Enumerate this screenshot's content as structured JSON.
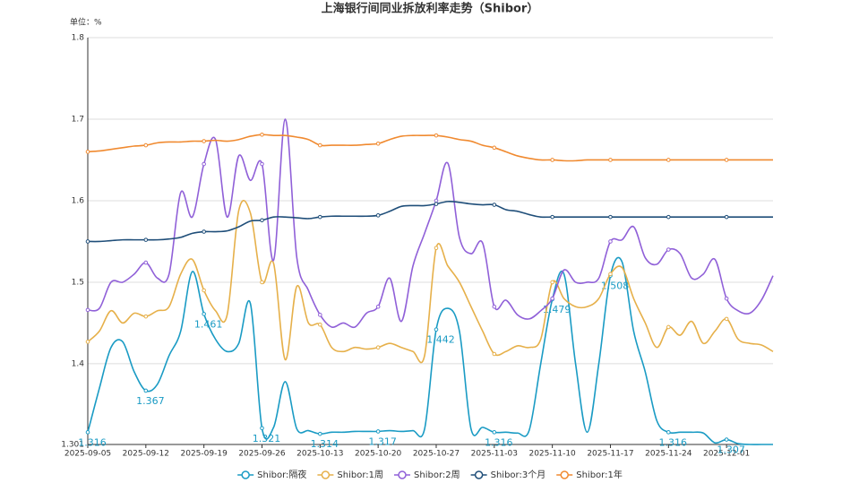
{
  "chart_data": {
    "type": "line",
    "title": "上海银行间同业拆放利率走势（Shibor）",
    "y_axis_label": "单位：%",
    "categories": [
      "2025-09-05",
      null,
      null,
      null,
      null,
      "2025-09-12",
      null,
      null,
      null,
      null,
      "2025-09-19",
      null,
      null,
      null,
      null,
      "2025-09-26",
      null,
      null,
      null,
      null,
      "2025-10-13",
      null,
      null,
      null,
      null,
      "2025-10-20",
      null,
      null,
      null,
      null,
      "2025-10-27",
      null,
      null,
      null,
      null,
      "2025-11-03",
      null,
      null,
      null,
      null,
      "2025-11-10",
      null,
      null,
      null,
      null,
      "2025-11-17",
      null,
      null,
      null,
      null,
      "2025-11-24",
      null,
      null,
      null,
      null,
      "2025-12-01",
      null,
      null,
      null,
      null
    ],
    "ylim": [
      1.301,
      1.8
    ],
    "yticks": [
      1.301,
      1.4,
      1.5,
      1.6,
      1.7,
      1.8
    ],
    "grid": true,
    "legend": "bottom",
    "series": [
      {
        "name": "Shibor:隔夜",
        "color": "#1a9bc4",
        "values": [
          1.316,
          1.37,
          1.42,
          1.427,
          1.39,
          1.367,
          1.375,
          1.41,
          1.44,
          1.513,
          1.461,
          1.43,
          1.415,
          1.425,
          1.474,
          1.321,
          1.322,
          1.378,
          1.32,
          1.318,
          1.314,
          1.316,
          1.316,
          1.317,
          1.317,
          1.317,
          1.318,
          1.317,
          1.318,
          1.32,
          1.442,
          1.468,
          1.44,
          1.32,
          1.322,
          1.316,
          1.316,
          1.315,
          1.318,
          1.4,
          1.479,
          1.51,
          1.4,
          1.316,
          1.4,
          1.508,
          1.525,
          1.44,
          1.39,
          1.33,
          1.316,
          1.316,
          1.316,
          1.315,
          1.303,
          1.307,
          1.302,
          1.301,
          1.301,
          1.301
        ],
        "value_labels": [
          "1.316",
          null,
          null,
          null,
          null,
          "1.367",
          null,
          null,
          null,
          null,
          "1.461",
          null,
          null,
          null,
          null,
          "1.321",
          null,
          null,
          null,
          null,
          "1.314",
          null,
          null,
          null,
          null,
          "1.317",
          null,
          null,
          null,
          null,
          "1.442",
          null,
          null,
          null,
          null,
          "1.316",
          null,
          null,
          null,
          null,
          "1.479",
          null,
          null,
          null,
          null,
          "1.508",
          null,
          null,
          null,
          null,
          "1.316",
          null,
          null,
          null,
          null,
          "1.307",
          null,
          null,
          null,
          null
        ]
      },
      {
        "name": "Shibor:1周",
        "color": "#e6b04a",
        "values": [
          1.427,
          1.44,
          1.465,
          1.45,
          1.462,
          1.458,
          1.465,
          1.47,
          1.51,
          1.528,
          1.49,
          1.465,
          1.46,
          1.588,
          1.585,
          1.5,
          1.523,
          1.405,
          1.495,
          1.45,
          1.448,
          1.42,
          1.415,
          1.42,
          1.418,
          1.42,
          1.425,
          1.42,
          1.415,
          1.41,
          1.542,
          1.52,
          1.5,
          1.47,
          1.44,
          1.412,
          1.415,
          1.422,
          1.42,
          1.43,
          1.5,
          1.48,
          1.47,
          1.47,
          1.48,
          1.51,
          1.518,
          1.48,
          1.45,
          1.42,
          1.445,
          1.435,
          1.452,
          1.425,
          1.44,
          1.455,
          1.43,
          1.425,
          1.423,
          1.415
        ]
      },
      {
        "name": "Shibor:2周",
        "color": "#9060d8",
        "values": [
          1.466,
          1.468,
          1.5,
          1.5,
          1.51,
          1.524,
          1.505,
          1.51,
          1.61,
          1.58,
          1.645,
          1.675,
          1.58,
          1.655,
          1.625,
          1.645,
          1.527,
          1.7,
          1.53,
          1.49,
          1.46,
          1.445,
          1.45,
          1.445,
          1.462,
          1.47,
          1.505,
          1.452,
          1.52,
          1.56,
          1.6,
          1.646,
          1.555,
          1.535,
          1.548,
          1.47,
          1.478,
          1.46,
          1.455,
          1.465,
          1.48,
          1.515,
          1.5,
          1.5,
          1.505,
          1.55,
          1.552,
          1.568,
          1.53,
          1.522,
          1.54,
          1.535,
          1.505,
          1.51,
          1.528,
          1.48,
          1.465,
          1.462,
          1.478,
          1.508
        ]
      },
      {
        "name": "Shibor:3个月",
        "color": "#1f4e79",
        "values": [
          1.55,
          1.55,
          1.551,
          1.552,
          1.552,
          1.552,
          1.552,
          1.553,
          1.555,
          1.56,
          1.562,
          1.562,
          1.563,
          1.568,
          1.575,
          1.576,
          1.58,
          1.58,
          1.579,
          1.578,
          1.58,
          1.581,
          1.581,
          1.581,
          1.581,
          1.582,
          1.587,
          1.593,
          1.594,
          1.594,
          1.596,
          1.599,
          1.598,
          1.596,
          1.595,
          1.595,
          1.589,
          1.587,
          1.583,
          1.58,
          1.58,
          1.58,
          1.58,
          1.58,
          1.58,
          1.58,
          1.58,
          1.58,
          1.58,
          1.58,
          1.58,
          1.58,
          1.58,
          1.58,
          1.58,
          1.58,
          1.58,
          1.58,
          1.58,
          1.58
        ]
      },
      {
        "name": "Shibor:1年",
        "color": "#f08a30",
        "values": [
          1.66,
          1.661,
          1.663,
          1.665,
          1.667,
          1.668,
          1.671,
          1.672,
          1.672,
          1.673,
          1.673,
          1.674,
          1.673,
          1.675,
          1.679,
          1.681,
          1.68,
          1.68,
          1.678,
          1.675,
          1.668,
          1.668,
          1.668,
          1.668,
          1.669,
          1.67,
          1.675,
          1.679,
          1.68,
          1.68,
          1.68,
          1.678,
          1.675,
          1.673,
          1.668,
          1.665,
          1.66,
          1.655,
          1.652,
          1.65,
          1.65,
          1.649,
          1.649,
          1.65,
          1.65,
          1.65,
          1.65,
          1.65,
          1.65,
          1.65,
          1.65,
          1.65,
          1.65,
          1.65,
          1.65,
          1.65,
          1.65,
          1.65,
          1.65,
          1.65
        ]
      }
    ]
  }
}
